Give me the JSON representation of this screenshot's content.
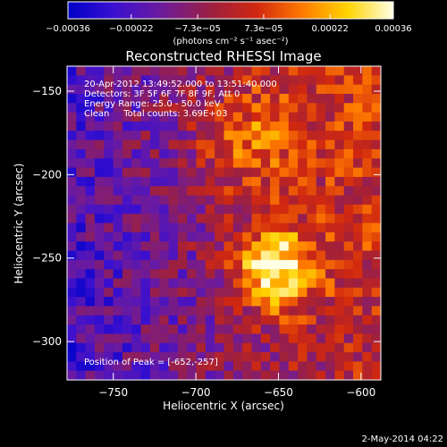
{
  "chart_data": {
    "type": "heatmap",
    "title": "Reconstructed RHESSI Image",
    "xlabel": "Heliocentric X (arcsec)",
    "ylabel": "Heliocentric Y (arcsec)",
    "xlim": [
      -778,
      -588
    ],
    "ylim": [
      -323,
      -135
    ],
    "x_ticks": [
      -750,
      -700,
      -650,
      -600
    ],
    "x_tick_labels": [
      "−750",
      "−700",
      "−650",
      "−600"
    ],
    "y_ticks": [
      -150,
      -200,
      -250,
      -300
    ],
    "y_tick_labels": [
      "−150",
      "−200",
      "−250",
      "−300"
    ],
    "colorbar": {
      "min": -0.00036,
      "max": 0.00036,
      "ticks": [
        -0.00036,
        -0.00022,
        -7.3e-05,
        7.3e-05,
        0.00022,
        0.00036
      ],
      "tick_labels": [
        "−0.00036",
        "−0.00022",
        "−7.3e−05",
        "7.3e−05",
        "0.00022",
        "0.00036"
      ],
      "units_label": "(photons cm⁻² s⁻¹ asec⁻²)",
      "colors": [
        "#0000c8",
        "#3a10d0",
        "#6a1aa0",
        "#a0203c",
        "#d02810",
        "#ff7a00",
        "#ffd400",
        "#ffffe6"
      ]
    },
    "annotations": [
      "20-Apr-2012 13:49:52.000 to 13:51:40.000",
      "Detectors: 3F 5F 6F 7F 8F 9F, Att 0",
      "Energy Range: 25.0 - 50.0 keV",
      "Clean     Total counts: 3.69E+03"
    ],
    "peak_label": "Position of Peak = [-652,-257]",
    "peak": [
      -652,
      -257
    ],
    "grid": false
  },
  "footer": {
    "date": "2-May-2014 04:22"
  }
}
